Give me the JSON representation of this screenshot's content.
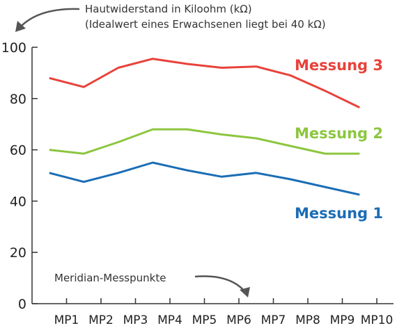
{
  "chart_data": {
    "type": "line",
    "categories": [
      "MP1",
      "MP2",
      "MP3",
      "MP4",
      "MP5",
      "MP6",
      "MP7",
      "MP8",
      "MP9",
      "MP10"
    ],
    "ylim": [
      0,
      100
    ],
    "yticks": [
      0,
      20,
      40,
      60,
      80,
      100
    ],
    "ylabel_lines": [
      "Hautwiderstand in Kiloohm (kΩ)",
      "(Idealwert eines Erwachsenen liegt bei 40 kΩ)"
    ],
    "xlabel": "Meridian-Messpunkte",
    "grid": false,
    "legend": "inline labels at right",
    "series": [
      {
        "name": "Messung 3",
        "color": "#e8423a",
        "x": [
          0.5,
          1.5,
          2.5,
          3.5,
          4.5,
          5.5,
          6.5,
          7.5,
          8.5,
          9.5
        ],
        "values": [
          88,
          84.5,
          92,
          95.5,
          93.5,
          92,
          92.5,
          89,
          83,
          76.5
        ]
      },
      {
        "name": "Messung 2",
        "color": "#8cc63f",
        "x": [
          0.5,
          1.5,
          2.5,
          3.5,
          4.5,
          5.5,
          6.5,
          7.5,
          8.5,
          9.5
        ],
        "values": [
          60,
          58.5,
          63,
          68,
          68,
          66,
          64.5,
          61.5,
          58.5,
          58.5
        ]
      },
      {
        "name": "Messung 1",
        "color": "#1b6db5",
        "x": [
          0.5,
          1.5,
          2.5,
          3.5,
          4.5,
          5.5,
          6.5,
          7.5,
          8.5,
          9.5
        ],
        "values": [
          51,
          47.5,
          51,
          55,
          52,
          49.5,
          51,
          48.5,
          45.5,
          42.5
        ]
      }
    ]
  }
}
